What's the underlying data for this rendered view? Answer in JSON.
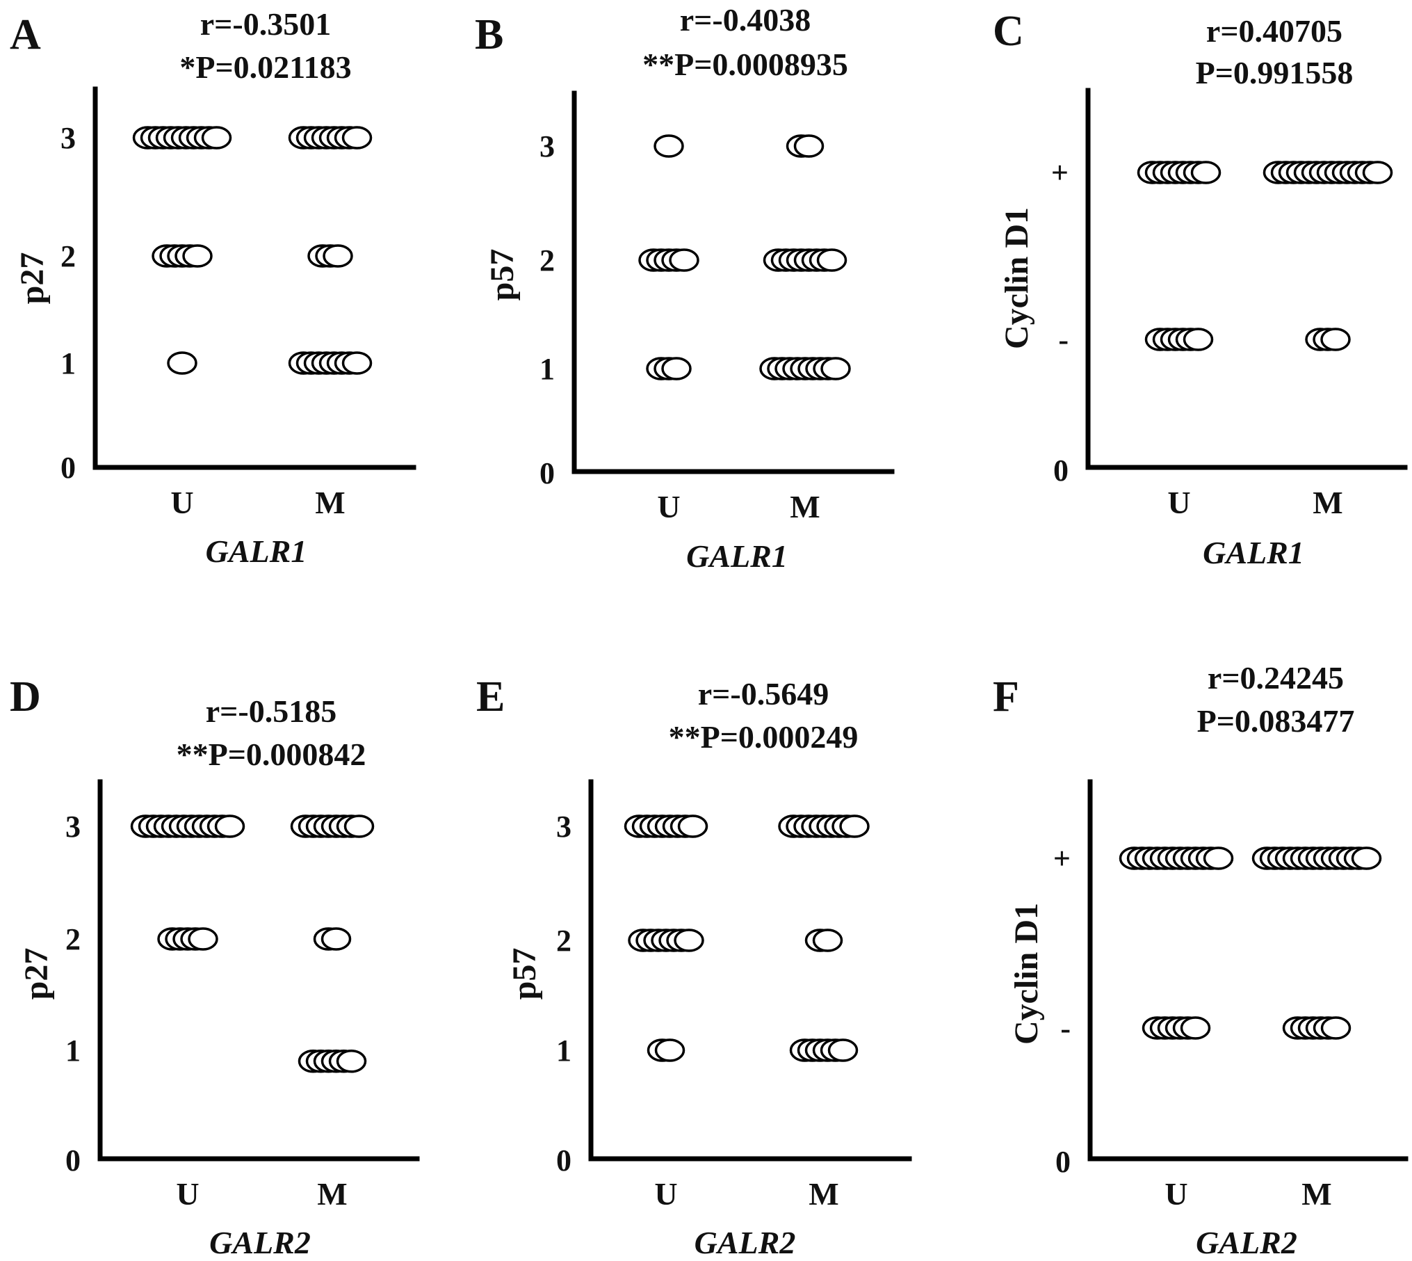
{
  "chart_data": [
    {
      "panel": "A",
      "type": "scatter",
      "stat_r": "r=-0.3501",
      "stat_p": "*P=0.021183",
      "ylabel": "p27",
      "xlabel": "GALR1",
      "categories": [
        "U",
        "M"
      ],
      "yticks": [
        "0",
        "1",
        "2",
        "3"
      ],
      "ylim": [
        0,
        3.4
      ],
      "points": [
        {
          "x": "U",
          "y": 3,
          "count": 10
        },
        {
          "x": "U",
          "y": 2,
          "count": 5
        },
        {
          "x": "U",
          "y": 1,
          "count": 1
        },
        {
          "x": "M",
          "y": 3,
          "count": 8
        },
        {
          "x": "M",
          "y": 2,
          "count": 3
        },
        {
          "x": "M",
          "y": 1,
          "count": 8
        }
      ]
    },
    {
      "panel": "B",
      "type": "scatter",
      "stat_r": "r=-0.4038",
      "stat_p": "**P=0.0008935",
      "ylabel": "p57",
      "xlabel": "GALR1",
      "categories": [
        "U",
        "M"
      ],
      "yticks": [
        "0",
        "1",
        "2",
        "3"
      ],
      "ylim": [
        0,
        3.4
      ],
      "points": [
        {
          "x": "U",
          "y": 3,
          "count": 1
        },
        {
          "x": "U",
          "y": 2,
          "count": 5
        },
        {
          "x": "U",
          "y": 1,
          "count": 3
        },
        {
          "x": "M",
          "y": 3,
          "count": 2
        },
        {
          "x": "M",
          "y": 2,
          "count": 8
        },
        {
          "x": "M",
          "y": 1,
          "count": 9
        }
      ]
    },
    {
      "panel": "C",
      "type": "scatter",
      "stat_r": "r=0.40705",
      "stat_p": "P=0.991558",
      "ylabel": "Cyclin D1",
      "xlabel": "GALR1",
      "categories": [
        "U",
        "M"
      ],
      "yticks": [
        "0",
        "-",
        "+"
      ],
      "ylim": [
        0,
        2.7
      ],
      "points": [
        {
          "x": "U",
          "y": "+",
          "count": 8
        },
        {
          "x": "U",
          "y": "-",
          "count": 6
        },
        {
          "x": "M",
          "y": "+",
          "count": 14
        },
        {
          "x": "M",
          "y": "-",
          "count": 3
        }
      ]
    },
    {
      "panel": "D",
      "type": "scatter",
      "stat_r": "r=-0.5185",
      "stat_p": "**P=0.000842",
      "ylabel": "p27",
      "xlabel": "GALR2",
      "categories": [
        "U",
        "M"
      ],
      "yticks": [
        "0",
        "1",
        "2",
        "3"
      ],
      "ylim": [
        0,
        3.4
      ],
      "points": [
        {
          "x": "U",
          "y": 3,
          "count": 12
        },
        {
          "x": "U",
          "y": 2,
          "count": 5
        },
        {
          "x": "M",
          "y": 3,
          "count": 8
        },
        {
          "x": "M",
          "y": 2,
          "count": 2
        },
        {
          "x": "M",
          "y": 0.9,
          "count": 6
        }
      ]
    },
    {
      "panel": "E",
      "type": "scatter",
      "stat_r": "r=-0.5649",
      "stat_p": "**P=0.000249",
      "ylabel": "p57",
      "xlabel": "GALR2",
      "categories": [
        "U",
        "M"
      ],
      "yticks": [
        "0",
        "1",
        "2",
        "3"
      ],
      "ylim": [
        0,
        3.4
      ],
      "points": [
        {
          "x": "U",
          "y": 3,
          "count": 8
        },
        {
          "x": "U",
          "y": 2,
          "count": 7
        },
        {
          "x": "U",
          "y": 1,
          "count": 2
        },
        {
          "x": "M",
          "y": 3,
          "count": 9
        },
        {
          "x": "M",
          "y": 2,
          "count": 2
        },
        {
          "x": "M",
          "y": 1,
          "count": 6
        }
      ]
    },
    {
      "panel": "F",
      "type": "scatter",
      "stat_r": "r=0.24245",
      "stat_p": "P=0.083477",
      "ylabel": "Cyclin D1",
      "xlabel": "GALR2",
      "categories": [
        "U",
        "M"
      ],
      "yticks": [
        "0",
        "-",
        "+"
      ],
      "ylim": [
        0,
        2.7
      ],
      "points": [
        {
          "x": "U",
          "y": "+",
          "count": 12
        },
        {
          "x": "U",
          "y": "-",
          "count": 6
        },
        {
          "x": "M",
          "y": "+",
          "count": 14
        },
        {
          "x": "M",
          "y": "-",
          "count": 6
        }
      ]
    }
  ]
}
